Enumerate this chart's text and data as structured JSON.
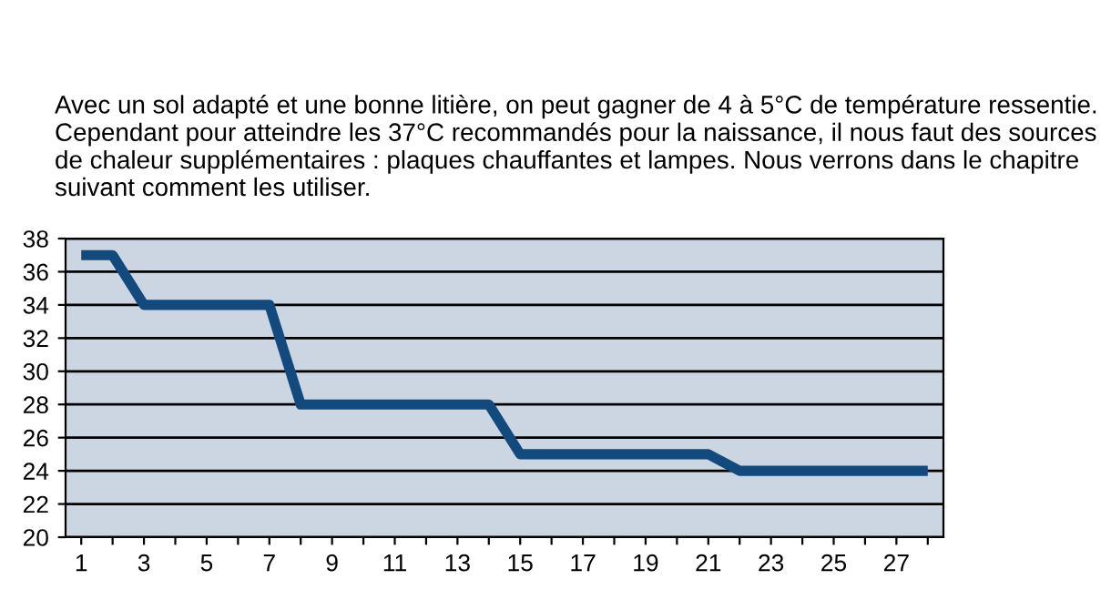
{
  "chart_data": {
    "type": "line",
    "title": "Avec un sol adapté et une bonne litière, on peut gagner de 4 à 5°C de température ressentie. Cependant pour atteindre les 37°C recommandés pour la naissance, il nous faut des sources de chaleur supplémentaires : plaques chauffantes et lampes. Nous verrons dans le chapitre suivant comment les utiliser.",
    "categories": [
      "1",
      null,
      "3",
      null,
      "5",
      null,
      "7",
      null,
      "9",
      null,
      "11",
      null,
      "13",
      null,
      "15",
      null,
      "17",
      null,
      "19",
      null,
      "21",
      null,
      "23",
      null,
      "25",
      null,
      "27",
      null
    ],
    "series": [
      {
        "color": "#124a7e",
        "values": [
          37,
          37,
          34,
          34,
          34,
          34,
          34,
          28,
          28,
          28,
          28,
          28,
          28,
          28,
          25,
          25,
          25,
          25,
          25,
          25,
          25,
          24,
          24,
          24,
          24,
          24,
          24,
          24
        ]
      }
    ],
    "ylim": [
      20,
      38
    ],
    "yticks": [
      20,
      22,
      24,
      26,
      28,
      30,
      32,
      34,
      36,
      38
    ],
    "grid": "y",
    "marker": "none",
    "line_style": "solid"
  }
}
